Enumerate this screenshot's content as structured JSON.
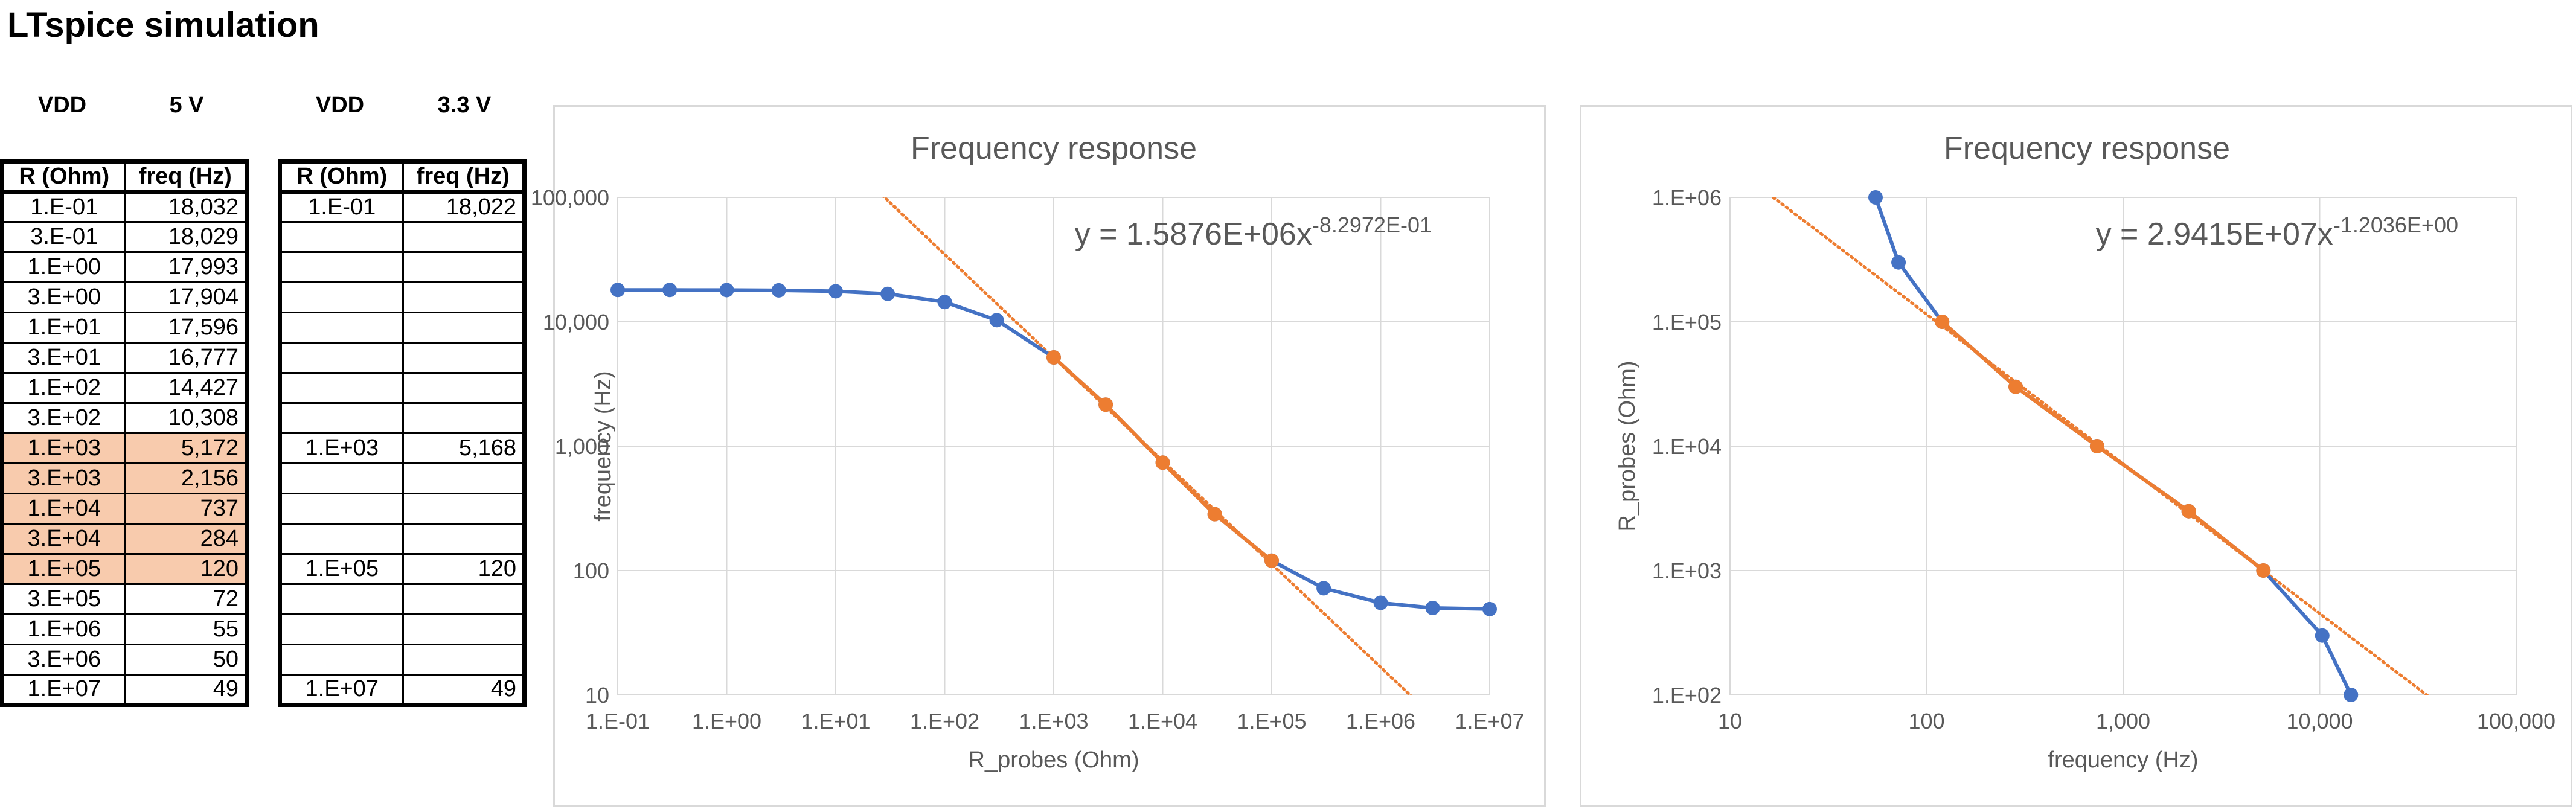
{
  "page_title": "LTspice simulation",
  "tables": [
    {
      "vdd_label": "VDD",
      "vdd_value": "5 V",
      "headers": [
        "R (Ohm)",
        "freq (Hz)"
      ],
      "rows": [
        {
          "r": "1.E-01",
          "f": "18,032",
          "hl": false
        },
        {
          "r": "3.E-01",
          "f": "18,029",
          "hl": false
        },
        {
          "r": "1.E+00",
          "f": "17,993",
          "hl": false
        },
        {
          "r": "3.E+00",
          "f": "17,904",
          "hl": false
        },
        {
          "r": "1.E+01",
          "f": "17,596",
          "hl": false
        },
        {
          "r": "3.E+01",
          "f": "16,777",
          "hl": false
        },
        {
          "r": "1.E+02",
          "f": "14,427",
          "hl": false
        },
        {
          "r": "3.E+02",
          "f": "10,308",
          "hl": false
        },
        {
          "r": "1.E+03",
          "f": "5,172",
          "hl": true
        },
        {
          "r": "3.E+03",
          "f": "2,156",
          "hl": true
        },
        {
          "r": "1.E+04",
          "f": "737",
          "hl": true
        },
        {
          "r": "3.E+04",
          "f": "284",
          "hl": true
        },
        {
          "r": "1.E+05",
          "f": "120",
          "hl": true
        },
        {
          "r": "3.E+05",
          "f": "72",
          "hl": false
        },
        {
          "r": "1.E+06",
          "f": "55",
          "hl": false
        },
        {
          "r": "3.E+06",
          "f": "50",
          "hl": false
        },
        {
          "r": "1.E+07",
          "f": "49",
          "hl": false
        }
      ]
    },
    {
      "vdd_label": "VDD",
      "vdd_value": "3.3 V",
      "headers": [
        "R (Ohm)",
        "freq (Hz)"
      ],
      "rows": [
        {
          "r": "1.E-01",
          "f": "18,022",
          "hl": false
        },
        {
          "r": "",
          "f": "",
          "hl": false
        },
        {
          "r": "",
          "f": "",
          "hl": false
        },
        {
          "r": "",
          "f": "",
          "hl": false
        },
        {
          "r": "",
          "f": "",
          "hl": false
        },
        {
          "r": "",
          "f": "",
          "hl": false
        },
        {
          "r": "",
          "f": "",
          "hl": false
        },
        {
          "r": "",
          "f": "",
          "hl": false
        },
        {
          "r": "1.E+03",
          "f": "5,168",
          "hl": false
        },
        {
          "r": "",
          "f": "",
          "hl": false
        },
        {
          "r": "",
          "f": "",
          "hl": false
        },
        {
          "r": "",
          "f": "",
          "hl": false
        },
        {
          "r": "1.E+05",
          "f": "120",
          "hl": false
        },
        {
          "r": "",
          "f": "",
          "hl": false
        },
        {
          "r": "",
          "f": "",
          "hl": false
        },
        {
          "r": "",
          "f": "",
          "hl": false
        },
        {
          "r": "1.E+07",
          "f": "49",
          "hl": false
        }
      ]
    }
  ],
  "colors": {
    "series_all": "#4472c4",
    "series_fit": "#ed7d31",
    "grid": "#d9d9d9",
    "axis_text": "#595959",
    "highlight": "#f8cbad"
  },
  "chart_data": [
    {
      "type": "scatter",
      "title": "Frequency response",
      "xlabel": "R_probes (Ohm)",
      "ylabel": "frequency (Hz)",
      "x_scale": "log",
      "y_scale": "log",
      "xlim": [
        0.1,
        10000000
      ],
      "ylim": [
        10,
        100000
      ],
      "x_ticks": [
        0.1,
        1,
        10,
        100,
        1000,
        10000,
        100000,
        1000000,
        10000000
      ],
      "x_tick_labels": [
        "1.E-01",
        "1.E+00",
        "1.E+01",
        "1.E+02",
        "1.E+03",
        "1.E+04",
        "1.E+05",
        "1.E+06",
        "1.E+07"
      ],
      "y_ticks": [
        10,
        100,
        1000,
        10000,
        100000
      ],
      "y_tick_labels": [
        "10",
        "100",
        "1,000",
        "10,000",
        "100,000"
      ],
      "grid": true,
      "equation": {
        "text": "y = 1.5876E+06x",
        "exponent": "-8.2972E-01"
      },
      "series": [
        {
          "role": "all",
          "x": [
            0.1,
            0.3,
            1,
            3,
            10,
            30,
            100,
            300,
            1000,
            3000,
            10000,
            30000,
            100000,
            300000,
            1000000,
            3000000,
            10000000
          ],
          "y": [
            18032,
            18029,
            17993,
            17904,
            17596,
            16777,
            14427,
            10308,
            5172,
            2156,
            737,
            284,
            120,
            72,
            55,
            50,
            49
          ]
        },
        {
          "role": "fit_range",
          "x": [
            1000,
            3000,
            10000,
            30000,
            100000
          ],
          "y": [
            5172,
            2156,
            737,
            284,
            120
          ]
        }
      ],
      "trendline": {
        "type": "power",
        "a": 1587600,
        "b": -0.82972
      }
    },
    {
      "type": "scatter",
      "title": "Frequency response",
      "xlabel": "frequency (Hz)",
      "ylabel": "R_probes (Ohm)",
      "x_scale": "log",
      "y_scale": "log",
      "xlim": [
        10,
        100000
      ],
      "ylim": [
        100,
        1000000
      ],
      "x_ticks": [
        10,
        100,
        1000,
        10000,
        100000
      ],
      "x_tick_labels": [
        "10",
        "100",
        "1,000",
        "10,000",
        "100,000"
      ],
      "y_ticks": [
        100,
        1000,
        10000,
        100000,
        1000000
      ],
      "y_tick_labels": [
        "1.E+02",
        "1.E+03",
        "1.E+04",
        "1.E+05",
        "1.E+06"
      ],
      "grid": true,
      "equation": {
        "text": "y = 2.9415E+07x",
        "exponent": "-1.2036E+00"
      },
      "series": [
        {
          "role": "all",
          "x": [
            55,
            72,
            120,
            284,
            737,
            2156,
            5172,
            10308,
            14427
          ],
          "y": [
            1000000,
            300000,
            100000,
            30000,
            10000,
            3000,
            1000,
            300,
            100
          ]
        },
        {
          "role": "fit_range",
          "x": [
            120,
            284,
            737,
            2156,
            5172
          ],
          "y": [
            100000,
            30000,
            10000,
            3000,
            1000
          ]
        }
      ],
      "trendline": {
        "type": "power",
        "a": 29415000,
        "b": -1.2036
      }
    }
  ]
}
